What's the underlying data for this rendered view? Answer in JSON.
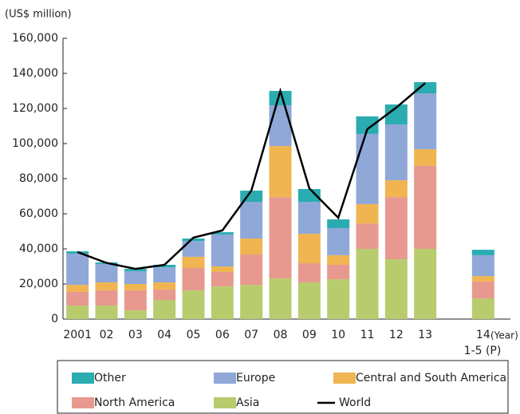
{
  "chart_data": {
    "type": "bar",
    "title": "(US$ million)",
    "x_unit": "(Year)",
    "annotation": "1-5 (P)",
    "categories": [
      "2001",
      "02",
      "03",
      "04",
      "05",
      "06",
      "07",
      "08",
      "09",
      "10",
      "11",
      "12",
      "13",
      null,
      "14"
    ],
    "stacked": true,
    "series": [
      {
        "name": "Other",
        "color": "#2aacb0",
        "values": [
          1300,
          900,
          1300,
          1400,
          1400,
          1300,
          6400,
          8200,
          7300,
          5000,
          10000,
          11400,
          6400,
          null,
          3100
        ]
      },
      {
        "name": "Europe",
        "color": "#8fa8d8",
        "values": [
          17800,
          10500,
          7300,
          8600,
          9000,
          18200,
          20900,
          23200,
          18200,
          15400,
          40000,
          31800,
          31800,
          null,
          11900
        ]
      },
      {
        "name": "Central and South America",
        "color": "#f0b551",
        "values": [
          4000,
          4500,
          3600,
          4100,
          6400,
          3200,
          9100,
          29100,
          16800,
          5500,
          11000,
          9600,
          9500,
          null,
          3100
        ]
      },
      {
        "name": "North America",
        "color": "#e8998f",
        "values": [
          7800,
          8700,
          11400,
          5900,
          12700,
          8200,
          17300,
          46300,
          10900,
          8200,
          14500,
          35400,
          47300,
          null,
          9600
        ]
      },
      {
        "name": "Asia",
        "color": "#b8cc6e",
        "values": [
          7700,
          7700,
          5000,
          10900,
          16400,
          18600,
          19500,
          23200,
          20900,
          22700,
          40000,
          34100,
          40000,
          null,
          11800
        ]
      },
      {
        "name": "World",
        "type": "line",
        "color": "#000000",
        "values": [
          38200,
          32000,
          28600,
          30900,
          46400,
          50500,
          73200,
          130000,
          74500,
          57700,
          108200,
          120500,
          134500,
          null,
          null
        ]
      }
    ],
    "ylim": [
      0,
      160000
    ],
    "yticks": [
      0,
      {
        "value": 20000,
        "label": "20,000"
      },
      {
        "value": 40000,
        "label": "40,000"
      },
      {
        "value": 60000,
        "label": "60,000"
      },
      {
        "value": 80000,
        "label": "80,000"
      },
      {
        "value": 100000,
        "label": "100,000"
      },
      {
        "value": 120000,
        "label": "120,000"
      },
      {
        "value": 140000,
        "label": "140,000"
      },
      {
        "value": 160000,
        "label": "160,000"
      }
    ],
    "grid": false
  }
}
